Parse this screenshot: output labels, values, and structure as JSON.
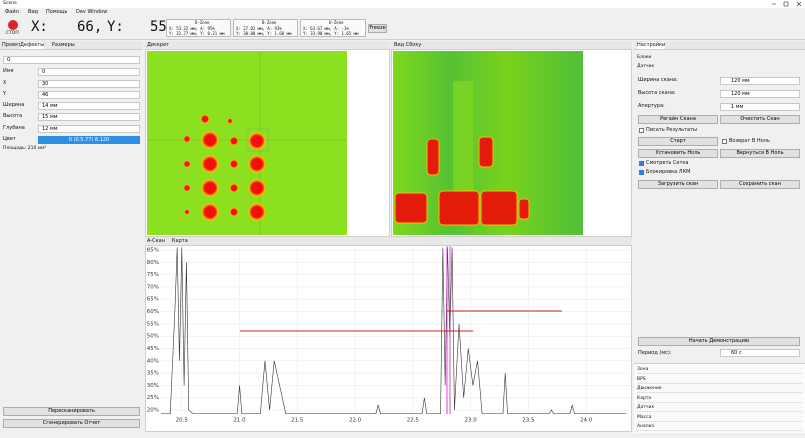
{
  "window": {
    "title": "Scene"
  },
  "menu": [
    "Файл",
    "Вид",
    "Помощь",
    "Dev Window"
  ],
  "toolbar": {
    "stop": "СТОП",
    "x_label": "X:",
    "x_value": "66,",
    "y_label": "Y:",
    "y_value": "55",
    "zones": [
      {
        "title": "D-Zone",
        "lines": [
          "X: 53.22 мм, A: 95%",
          "Y: 32.77 мм, Y: 0.21 мм"
        ]
      },
      {
        "title": "B-Zone",
        "lines": [
          "X: 27.02 мм, A: 93%",
          "Y: 30.00 мм, Y: 1.60 мм"
        ]
      },
      {
        "title": "U-Zone",
        "lines": [
          "X: 63.67 мм, A: -1%",
          "Y: 33.90 мм, Y: 1.65 мм"
        ]
      }
    ],
    "freeze": "Freeze"
  },
  "left_panel": {
    "tabs": [
      "Проект",
      "Дефекты",
      "Размеры"
    ],
    "selector": "0",
    "fields": [
      {
        "label": "Имя",
        "value": "0"
      },
      {
        "label": "X",
        "value": "30"
      },
      {
        "label": "Y",
        "value": "46"
      },
      {
        "label": "Ширина",
        "value": "14 мм"
      },
      {
        "label": "Высота",
        "value": "15 мм"
      },
      {
        "label": "Глубина",
        "value": "12 мм"
      }
    ],
    "color": {
      "label": "Цвет",
      "value": "0 (0.5.77) 8.120"
    },
    "area": "Площадь: 210 мм²",
    "buttons": [
      "Пересканировать",
      "Сгенерировать Отчет"
    ]
  },
  "center": {
    "top_panels": [
      "Дискрет",
      "Вид Сбоку"
    ],
    "bottom_tabs": [
      "A-Скан",
      "Карта"
    ]
  },
  "right_panel": {
    "tab": "Настройки",
    "section": "Блоки",
    "group": "Датчик",
    "settings": [
      {
        "label": "Ширина скана:",
        "value": "120 мм"
      },
      {
        "label": "Высота скана:",
        "value": "120 мм"
      },
      {
        "label": "Апертура:",
        "value": "1 мм"
      }
    ],
    "buttons_row1": [
      "Регайн Скана",
      "Очистить Скан"
    ],
    "check_write": "Писать Результаты",
    "start": "Старт",
    "check_return": "Возврат В Ноль",
    "buttons_row2": [
      "Установить Ноль",
      "Вернуться В Ноль"
    ],
    "check_grid": "Смотреть Сетка",
    "check_lock": "Блокировка ЛКМ",
    "buttons_row3": [
      "Загрузить скан",
      "Сохранить скан"
    ],
    "demo": "Начать Демонстрацию",
    "period": {
      "label": "Период (мс):",
      "value": "60 с"
    },
    "list": [
      "Зона",
      "BPS",
      "Движение",
      "Карта",
      "Датчик",
      "Масса",
      "Анализ"
    ]
  },
  "chart_data": {
    "type": "line",
    "color": "#333333",
    "grid": true,
    "xlim": [
      20.32,
      24.38
    ],
    "ylim": [
      18.4,
      86.6
    ],
    "xticks": [
      {
        "value": 20.5,
        "label": "20.5"
      },
      {
        "value": 21,
        "label": "21.0"
      },
      {
        "value": 21.5,
        "label": "21.5"
      },
      {
        "value": 22,
        "label": "22.0"
      },
      {
        "value": 22.5,
        "label": "22.5"
      },
      {
        "value": 23,
        "label": "23.0"
      },
      {
        "value": 23.5,
        "label": "23.5"
      },
      {
        "value": 24,
        "label": "24.0"
      }
    ],
    "yticks": [
      {
        "value": 20,
        "label": "20%"
      },
      {
        "value": 25,
        "label": "25%"
      },
      {
        "value": 30,
        "label": "30%"
      },
      {
        "value": 35,
        "label": "35%"
      },
      {
        "value": 40,
        "label": "40%"
      },
      {
        "value": 45,
        "label": "45%"
      },
      {
        "value": 50,
        "label": "50%"
      },
      {
        "value": 55,
        "label": "55%"
      },
      {
        "value": 60,
        "label": "60%"
      },
      {
        "value": 65,
        "label": "65%"
      },
      {
        "value": 70,
        "label": "70%"
      },
      {
        "value": 75,
        "label": "75%"
      },
      {
        "value": 80,
        "label": "80%"
      },
      {
        "value": 85,
        "label": "85%"
      }
    ],
    "x": [
      20.32,
      20.4,
      20.44,
      20.46,
      20.48,
      20.5,
      20.52,
      20.54,
      20.56,
      20.6,
      20.7,
      20.9,
      20.98,
      21.0,
      21.02,
      21.1,
      21.18,
      21.22,
      21.26,
      21.3,
      21.4,
      21.6,
      21.8,
      22.0,
      22.18,
      22.2,
      22.22,
      22.4,
      22.58,
      22.6,
      22.62,
      22.7,
      22.74,
      22.76,
      22.78,
      22.8,
      22.82,
      22.84,
      22.86,
      22.9,
      22.94,
      22.98,
      23.02,
      23.06,
      23.1,
      23.2,
      23.28,
      23.3,
      23.32,
      23.5,
      23.68,
      23.7,
      23.72,
      23.8,
      23.86,
      23.88,
      23.9,
      24.0,
      24.2,
      24.35
    ],
    "values": [
      18.5,
      18.5,
      60,
      86,
      40,
      86,
      30,
      80,
      20,
      18.5,
      18.5,
      18.5,
      18.5,
      30,
      18.5,
      18.5,
      18.5,
      40,
      20,
      40,
      18.5,
      18.5,
      18.5,
      18.5,
      18.5,
      22,
      18.5,
      18.5,
      18.5,
      25,
      18.5,
      18.5,
      18.5,
      86,
      30,
      86,
      50,
      86,
      20,
      55,
      25,
      45,
      30,
      40,
      18.5,
      18.5,
      18.5,
      35,
      18.5,
      18.5,
      18.5,
      20,
      18.5,
      18.5,
      18.5,
      22,
      18.5,
      18.5,
      18.5,
      18.5
    ]
  }
}
